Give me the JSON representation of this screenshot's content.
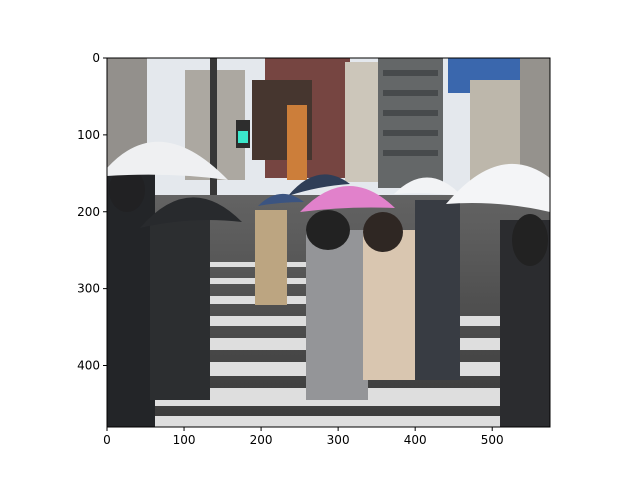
{
  "figure": {
    "type": "image",
    "description_free": true
  },
  "chart_data": {
    "type": "image",
    "title": "",
    "xlabel": "",
    "ylabel": "",
    "xlim": [
      0,
      575
    ],
    "ylim": [
      480,
      0
    ],
    "x_ticks": [
      {
        "value": 0,
        "label": "0"
      },
      {
        "value": 100,
        "label": "100"
      },
      {
        "value": 200,
        "label": "200"
      },
      {
        "value": 300,
        "label": "300"
      },
      {
        "value": 400,
        "label": "400"
      },
      {
        "value": 500,
        "label": "500"
      }
    ],
    "y_ticks": [
      {
        "value": 0,
        "label": "0"
      },
      {
        "value": 100,
        "label": "100"
      },
      {
        "value": 200,
        "label": "200"
      },
      {
        "value": 300,
        "label": "300"
      },
      {
        "value": 400,
        "label": "400"
      }
    ],
    "grid": false
  },
  "colors": {
    "sky": "#e9edf2",
    "road": "#3a3a3a",
    "stripe": "#dcdcdc",
    "pink_umbrella": "#e07ac8",
    "white_umbrella": "#f0f2f4",
    "dark_umbrella": "#1c1f24",
    "billboard_blue": "#2e5ea8",
    "signal_green": "#2ee6c8"
  }
}
